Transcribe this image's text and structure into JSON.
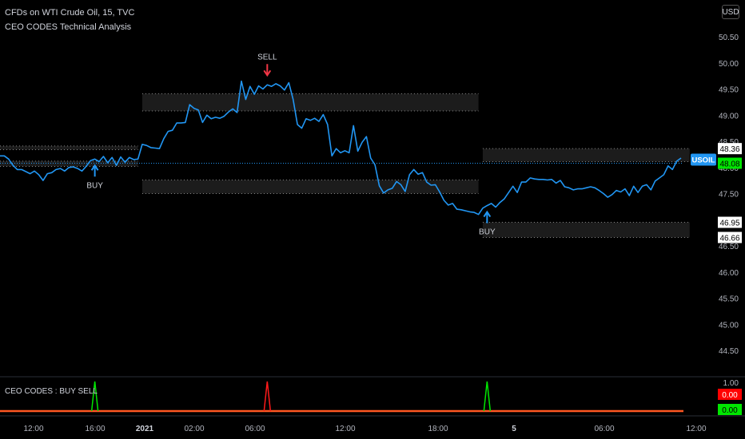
{
  "header": {
    "symbol_line": "CFDs on WTI Crude Oil, 15, TVC",
    "indicator_line": "CEO CODES Technical Analysis"
  },
  "currency_button": "USD",
  "indicator_pane": {
    "label": "CEO CODES : BUY SELL"
  },
  "colors": {
    "background": "#000000",
    "price_line": "#2196f3",
    "buy": "#2196f3",
    "sell": "#f23645",
    "zone_fill": "#1c1c1c",
    "zone_border": "#888888",
    "ind_green": "#00e600",
    "ind_red": "#ff1a1a",
    "ind_base": "#ff5722",
    "label_green": "#00e600",
    "label_red": "#ff0000"
  },
  "chart_data": {
    "type": "line",
    "ylim": [
      44.0,
      51.0
    ],
    "yticks": [
      "50.50",
      "50.00",
      "49.50",
      "49.00",
      "48.50",
      "48.00",
      "47.50",
      "47.00",
      "46.50",
      "46.00",
      "45.50",
      "45.00",
      "44.50"
    ],
    "xticks": [
      "12:00",
      "16:00",
      "2021",
      "02:00",
      "06:00",
      "12:00",
      "18:00",
      "5",
      "06:00",
      "12:00"
    ],
    "series": [
      {
        "values": [
          48.22,
          48.22,
          48.16,
          48.04,
          47.96,
          47.96,
          47.92,
          47.88,
          47.93,
          47.86,
          47.75,
          47.88,
          47.9,
          47.96,
          47.98,
          47.93,
          48.0,
          48.01,
          47.98,
          47.93,
          48.02,
          48.13,
          48.16,
          48.11,
          48.21,
          48.09,
          48.19,
          48.04,
          48.2,
          48.1,
          48.19,
          48.15,
          48.16,
          48.44,
          48.42,
          48.38,
          48.37,
          48.36,
          48.55,
          48.69,
          48.71,
          48.85,
          48.85,
          48.86,
          49.2,
          49.13,
          49.1,
          48.86,
          49.0,
          48.93,
          48.96,
          48.94,
          48.98,
          49.06,
          49.12,
          49.05,
          49.65,
          49.3,
          49.55,
          49.4,
          49.56,
          49.5,
          49.58,
          49.55,
          49.6,
          49.56,
          49.48,
          49.62,
          49.3,
          48.82,
          48.75,
          48.93,
          48.9,
          48.94,
          48.88,
          49.01,
          48.82,
          48.22,
          48.36,
          48.28,
          48.32,
          48.28,
          48.8,
          48.31,
          48.48,
          48.59,
          48.18,
          48.05,
          47.65,
          47.51,
          47.57,
          47.6,
          47.73,
          47.67,
          47.54,
          47.86,
          47.96,
          47.87,
          47.9,
          47.72,
          47.66,
          47.67,
          47.53,
          47.37,
          47.28,
          47.31,
          47.2,
          47.19,
          47.17,
          47.15,
          47.14,
          47.1,
          47.22,
          47.27,
          47.31,
          47.24,
          47.33,
          47.4,
          47.52,
          47.64,
          47.52,
          47.72,
          47.72,
          47.8,
          47.78,
          47.77,
          47.77,
          47.76,
          47.77,
          47.7,
          47.75,
          47.63,
          47.61,
          47.57,
          47.59,
          47.59,
          47.61,
          47.63,
          47.61,
          47.56,
          47.5,
          47.43,
          47.48,
          47.56,
          47.53,
          47.59,
          47.46,
          47.64,
          47.52,
          47.64,
          47.67,
          47.57,
          47.74,
          47.8,
          47.86,
          48.03,
          47.96,
          48.12,
          48.18
        ]
      }
    ],
    "current_price": 48.08,
    "symbol_badge": "USOIL",
    "price_labels": [
      "48.36",
      "48.08",
      "46.95",
      "46.66"
    ],
    "zones": [
      {
        "x_from": 0,
        "x_to": 32,
        "top": 48.41,
        "bottom": 48.02,
        "lines": [
          48.41,
          48.34,
          48.12,
          48.02
        ]
      },
      {
        "x_from": 33,
        "x_to": 111,
        "top": 49.41,
        "bottom": 47.5,
        "lines": [
          49.41,
          49.08,
          47.76,
          47.5
        ]
      },
      {
        "x_from": 112,
        "x_to": 160,
        "top": 48.36,
        "bottom": 46.66,
        "lines": [
          48.36,
          48.11,
          46.95,
          46.66
        ]
      }
    ],
    "signals": [
      {
        "type": "buy",
        "label": "BUY",
        "index": 22
      },
      {
        "type": "sell",
        "label": "SELL",
        "index": 62
      },
      {
        "type": "buy",
        "label": "BUY",
        "index": 113
      }
    ],
    "indicator": {
      "yticks": [
        "1.00"
      ],
      "value_labels": [
        "0.00",
        "0.00"
      ],
      "spikes": [
        {
          "index": 22,
          "color": "green"
        },
        {
          "index": 62,
          "color": "red"
        },
        {
          "index": 113,
          "color": "green"
        }
      ]
    }
  }
}
